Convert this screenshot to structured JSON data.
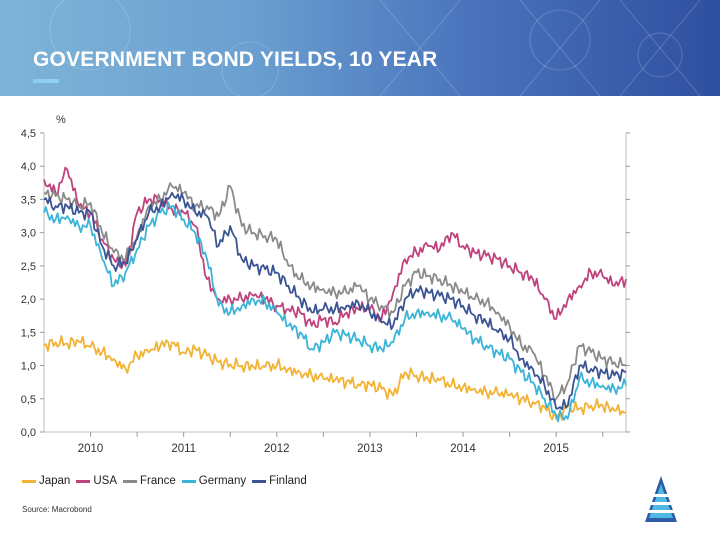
{
  "header": {
    "title": "GOVERNMENT BOND YIELDS, 10 YEAR"
  },
  "colors": {
    "banner_start": "#7fb4d8",
    "banner_end": "#2f4f9f",
    "accent": "#8fd0ee"
  },
  "chart_data": {
    "type": "line",
    "title": "GOVERNMENT BOND YIELDS, 10 YEAR",
    "ylabel": "%",
    "xlabel": "",
    "ylim": [
      0,
      4.5
    ],
    "xlim": [
      2009.5,
      2015.75
    ],
    "yticks": [
      0,
      0.5,
      1.0,
      1.5,
      2.0,
      2.5,
      3.0,
      3.5,
      4.0,
      4.5
    ],
    "ytick_labels": [
      "0,0",
      "0,5",
      "1,0",
      "1,5",
      "2,0",
      "2,5",
      "3,0",
      "3,5",
      "4,0",
      "4,5"
    ],
    "xtick_labels": [
      {
        "label": "2010",
        "x": 2010.0
      },
      {
        "label": "2011",
        "x": 2011.0
      },
      {
        "label": "2012",
        "x": 2012.0
      },
      {
        "label": "2013",
        "x": 2013.0
      },
      {
        "label": "2014",
        "x": 2014.0
      },
      {
        "label": "2015",
        "x": 2015.0
      }
    ],
    "x": [
      2009.5,
      2009.625,
      2009.75,
      2009.875,
      2010.0,
      2010.125,
      2010.25,
      2010.375,
      2010.5,
      2010.625,
      2010.75,
      2010.875,
      2011.0,
      2011.125,
      2011.25,
      2011.375,
      2011.5,
      2011.625,
      2011.75,
      2011.875,
      2012.0,
      2012.125,
      2012.25,
      2012.375,
      2012.5,
      2012.625,
      2012.75,
      2012.875,
      2013.0,
      2013.125,
      2013.25,
      2013.375,
      2013.5,
      2013.625,
      2013.75,
      2013.875,
      2014.0,
      2014.125,
      2014.25,
      2014.375,
      2014.5,
      2014.625,
      2014.75,
      2014.875,
      2015.0,
      2015.125,
      2015.25,
      2015.375,
      2015.5,
      2015.625,
      2015.75
    ],
    "series": [
      {
        "name": "Japan",
        "color": "#f2b233",
        "values": [
          1.3,
          1.35,
          1.33,
          1.36,
          1.28,
          1.2,
          1.1,
          0.95,
          1.15,
          1.2,
          1.3,
          1.35,
          1.2,
          1.25,
          1.15,
          1.05,
          1.02,
          1.0,
          0.98,
          0.98,
          1.0,
          0.95,
          0.9,
          0.85,
          0.8,
          0.78,
          0.76,
          0.72,
          0.72,
          0.65,
          0.55,
          0.9,
          0.85,
          0.8,
          0.78,
          0.7,
          0.68,
          0.65,
          0.6,
          0.58,
          0.55,
          0.5,
          0.45,
          0.38,
          0.2,
          0.38,
          0.35,
          0.4,
          0.4,
          0.32,
          0.3
        ]
      },
      {
        "name": "USA",
        "color": "#c0427c",
        "values": [
          3.8,
          3.6,
          3.95,
          3.4,
          3.3,
          2.9,
          2.6,
          2.5,
          3.3,
          3.5,
          3.5,
          3.35,
          3.3,
          3.1,
          2.3,
          2.0,
          2.0,
          2.0,
          2.05,
          2.0,
          1.9,
          1.85,
          1.8,
          1.6,
          1.7,
          1.65,
          1.8,
          1.85,
          1.85,
          1.7,
          2.1,
          2.6,
          2.7,
          2.8,
          2.75,
          3.0,
          2.8,
          2.7,
          2.65,
          2.6,
          2.5,
          2.4,
          2.3,
          2.0,
          1.7,
          2.0,
          2.2,
          2.4,
          2.35,
          2.2,
          2.3
        ]
      },
      {
        "name": "France",
        "color": "#8a8a8a",
        "values": [
          3.6,
          3.55,
          3.5,
          3.4,
          3.45,
          3.0,
          2.7,
          2.6,
          2.95,
          3.4,
          3.5,
          3.7,
          3.6,
          3.4,
          3.4,
          3.25,
          3.7,
          3.1,
          3.0,
          2.95,
          2.9,
          2.5,
          2.3,
          2.2,
          2.15,
          2.1,
          2.1,
          2.2,
          2.0,
          1.9,
          1.8,
          2.2,
          2.4,
          2.35,
          2.3,
          2.2,
          2.1,
          2.0,
          1.95,
          1.8,
          1.6,
          1.3,
          1.2,
          0.85,
          0.5,
          0.75,
          1.3,
          1.2,
          1.1,
          1.05,
          1.0
        ]
      },
      {
        "name": "Germany",
        "color": "#3bb4d8",
        "values": [
          3.3,
          3.2,
          3.25,
          3.1,
          3.1,
          2.6,
          2.2,
          2.4,
          2.75,
          3.1,
          3.3,
          3.4,
          3.2,
          3.0,
          2.6,
          1.9,
          1.8,
          1.9,
          2.0,
          1.95,
          1.8,
          1.6,
          1.5,
          1.25,
          1.35,
          1.5,
          1.45,
          1.4,
          1.3,
          1.25,
          1.35,
          1.7,
          1.8,
          1.8,
          1.75,
          1.7,
          1.55,
          1.4,
          1.3,
          1.2,
          1.1,
          0.9,
          0.75,
          0.5,
          0.25,
          0.2,
          0.8,
          0.75,
          0.7,
          0.65,
          0.7
        ]
      },
      {
        "name": "Finland",
        "color": "#3a5493",
        "values": [
          3.5,
          3.4,
          3.4,
          3.3,
          3.3,
          2.8,
          2.5,
          2.55,
          2.9,
          3.3,
          3.4,
          3.6,
          3.5,
          3.3,
          3.25,
          2.8,
          3.1,
          2.6,
          2.5,
          2.45,
          2.4,
          2.2,
          2.0,
          1.8,
          1.85,
          1.85,
          1.9,
          1.95,
          1.8,
          1.65,
          1.6,
          2.0,
          2.15,
          2.1,
          2.05,
          2.0,
          1.9,
          1.75,
          1.65,
          1.5,
          1.4,
          1.1,
          0.95,
          0.7,
          0.35,
          0.4,
          1.0,
          0.95,
          0.9,
          0.85,
          0.9
        ]
      }
    ]
  },
  "legend": [
    {
      "label": "Japan",
      "color": "#f2b233"
    },
    {
      "label": "USA",
      "color": "#c0427c"
    },
    {
      "label": "France",
      "color": "#8a8a8a"
    },
    {
      "label": "Germany",
      "color": "#3bb4d8"
    },
    {
      "label": "Finland",
      "color": "#3a5493"
    }
  ],
  "source": "Source: Macrobond"
}
